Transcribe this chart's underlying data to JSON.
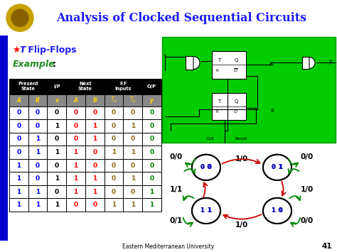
{
  "title": "Analysis of Clocked Sequential Circuits",
  "title_color": "#1a1aff",
  "header_bg": "#FFA500",
  "slide_bg": "#ffffff",
  "subtitle_color": "#1a1aff",
  "example_color": "#228B22",
  "table_data": [
    [
      0,
      0,
      0,
      0,
      0,
      0,
      0,
      0
    ],
    [
      0,
      0,
      1,
      0,
      1,
      0,
      1,
      0
    ],
    [
      0,
      1,
      0,
      0,
      1,
      0,
      0,
      0
    ],
    [
      0,
      1,
      1,
      1,
      0,
      1,
      1,
      0
    ],
    [
      1,
      0,
      0,
      1,
      0,
      0,
      0,
      0
    ],
    [
      1,
      0,
      1,
      1,
      1,
      0,
      1,
      0
    ],
    [
      1,
      1,
      0,
      1,
      1,
      0,
      0,
      1
    ],
    [
      1,
      1,
      1,
      0,
      0,
      1,
      1,
      1
    ]
  ],
  "col_colors": [
    "#0000ff",
    "#0000ff",
    "#000000",
    "#ff0000",
    "#ff0000",
    "#8B6914",
    "#8B6914",
    "#008000"
  ],
  "green_bg": "#00cc00",
  "state_label_color": "#0000bb",
  "transition_red": "#cc0000",
  "transition_green": "#008800",
  "self_loop_green": "#00aa00",
  "footer_text": "Eastern Mediterranean University",
  "page_num": "41"
}
